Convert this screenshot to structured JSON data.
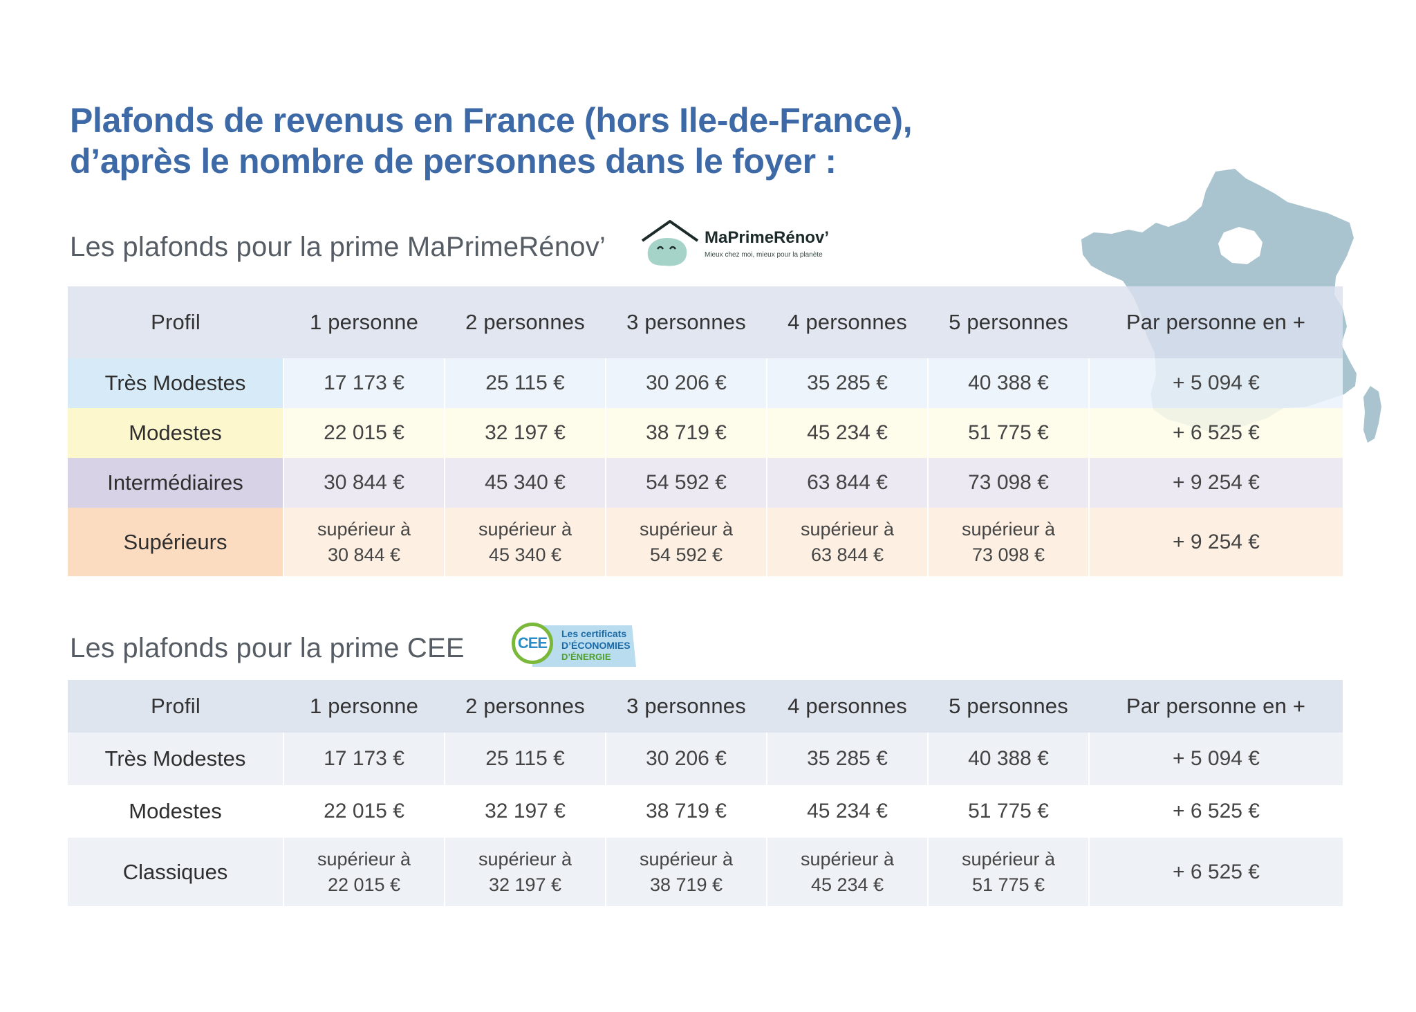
{
  "title": {
    "line1": "Plafonds de revenus en France (hors Ile-de-France),",
    "line2": "d’après le nombre de personnes dans le foyer :"
  },
  "section_mpr": {
    "subtitle": "Les plafonds pour la prime MaPrimeRénov’",
    "logo": {
      "brand": "MaPrimeRénov’",
      "tagline": "Mieux chez moi, mieux pour la planète",
      "icon": "house-face-icon"
    },
    "headers": [
      "Profil",
      "1 personne",
      "2 personnes",
      "3 personnes",
      "4 personnes",
      "5 personnes",
      "Par personne en +"
    ],
    "rows": [
      {
        "label": "Très Modestes",
        "values": [
          "17 173 €",
          "25 115 €",
          "30 206 €",
          "35 285 €",
          "40 388 €",
          "+ 5 094 €"
        ],
        "color": "#d6eaf7"
      },
      {
        "label": "Modestes",
        "values": [
          "22 015 €",
          "32 197 €",
          "38 719 €",
          "45 234 €",
          "51 775 €",
          "+ 6 525 €"
        ],
        "color": "#fdf7cd"
      },
      {
        "label": "Intermédiaires",
        "values": [
          "30 844 €",
          "45 340 €",
          "54 592 €",
          "63 844 €",
          "73 098 €",
          "+ 9 254 €"
        ],
        "color": "#d7d2e6"
      },
      {
        "label": "Supérieurs",
        "prefix": "supérieur à",
        "values": [
          "30 844 €",
          "45 340 €",
          "54 592 €",
          "63 844 €",
          "73 098 €",
          "+ 9 254 €"
        ],
        "color": "#fcdcc0"
      }
    ]
  },
  "section_cee": {
    "subtitle": "Les plafonds pour la prime CEE",
    "logo": {
      "mark": "CEE",
      "line1": "Les certificats",
      "line2": "D’ÉCONOMIES",
      "line3": "D’ÉNERGIE"
    },
    "headers": [
      "Profil",
      "1 personne",
      "2 personnes",
      "3 personnes",
      "4 personnes",
      "5 personnes",
      "Par personne en +"
    ],
    "rows": [
      {
        "label": "Très Modestes",
        "values": [
          "17 173 €",
          "25 115 €",
          "30 206 €",
          "35 285 €",
          "40 388 €",
          "+ 5 094 €"
        ]
      },
      {
        "label": "Modestes",
        "values": [
          "22 015 €",
          "32 197 €",
          "38 719 €",
          "45 234 €",
          "51 775 €",
          "+ 6 525 €"
        ]
      },
      {
        "label": "Classiques",
        "prefix": "supérieur à",
        "values": [
          "22 015 €",
          "32 197 €",
          "38 719 €",
          "45 234 €",
          "51 775 €",
          "+ 6 525 €"
        ]
      }
    ]
  },
  "map": {
    "icon": "france-map-icon",
    "color": "#a9c3cf",
    "highlight_color": "#ffffff"
  }
}
